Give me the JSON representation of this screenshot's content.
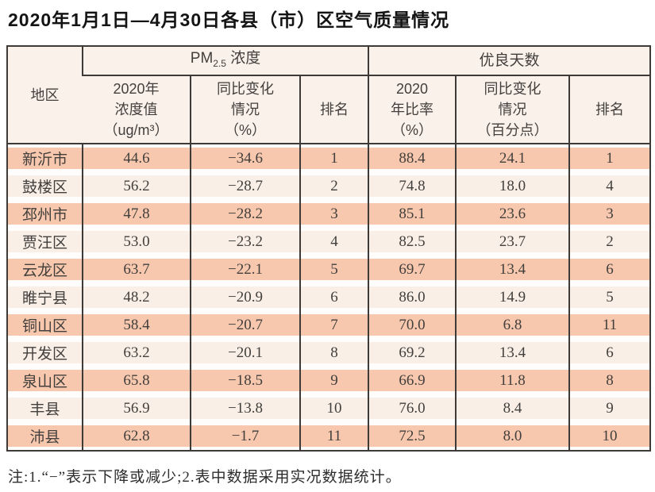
{
  "page": {
    "title": "2020年1月1日—4月30日各县（市）区空气质量情况",
    "footnote": "注:1.“−”表示下降或减少;2.表中数据采用实况数据统计。"
  },
  "table": {
    "region_header": "地区",
    "group_pm25": {
      "prefix": "PM",
      "sub": "2.5",
      "suffix": " 浓度"
    },
    "group_days": "优良天数",
    "sub_headers": [
      "2020年\n浓度值\n（ug/m³）",
      "同比变化\n情况\n（%）",
      "排名",
      "2020\n年比率\n（%）",
      "同比变化\n情况\n（百分点）",
      "排名"
    ],
    "rows": [
      {
        "region": "新沂市",
        "values": [
          "44.6",
          "−34.6",
          "1",
          "88.4",
          "24.1",
          "1"
        ]
      },
      {
        "region": "鼓楼区",
        "values": [
          "56.2",
          "−28.7",
          "2",
          "74.8",
          "18.0",
          "4"
        ]
      },
      {
        "region": "邳州市",
        "values": [
          "47.8",
          "−28.2",
          "3",
          "85.1",
          "23.6",
          "3"
        ]
      },
      {
        "region": "贾汪区",
        "values": [
          "53.0",
          "−23.2",
          "4",
          "82.5",
          "23.7",
          "2"
        ]
      },
      {
        "region": "云龙区",
        "values": [
          "63.7",
          "−22.1",
          "5",
          "69.7",
          "13.4",
          "6"
        ]
      },
      {
        "region": "睢宁县",
        "values": [
          "48.2",
          "−20.9",
          "6",
          "86.0",
          "14.9",
          "5"
        ]
      },
      {
        "region": "铜山区",
        "values": [
          "58.4",
          "−20.7",
          "7",
          "70.0",
          "6.8",
          "11"
        ]
      },
      {
        "region": "开发区",
        "values": [
          "63.2",
          "−20.1",
          "8",
          "69.2",
          "13.4",
          "6"
        ]
      },
      {
        "region": "泉山区",
        "values": [
          "65.8",
          "−18.5",
          "9",
          "66.9",
          "11.8",
          "8"
        ]
      },
      {
        "region": "丰县",
        "values": [
          "56.9",
          "−13.8",
          "10",
          "76.0",
          "8.4",
          "9"
        ]
      },
      {
        "region": "沛县",
        "values": [
          "62.8",
          "−1.7",
          "11",
          "72.5",
          "8.0",
          "10"
        ]
      }
    ],
    "colors": {
      "stripe_dark": "#f7c8ae",
      "stripe_light": "#f9efe7",
      "header_bg": "#faf1ea",
      "border": "#3d3a37",
      "text": "#423f3c"
    }
  }
}
